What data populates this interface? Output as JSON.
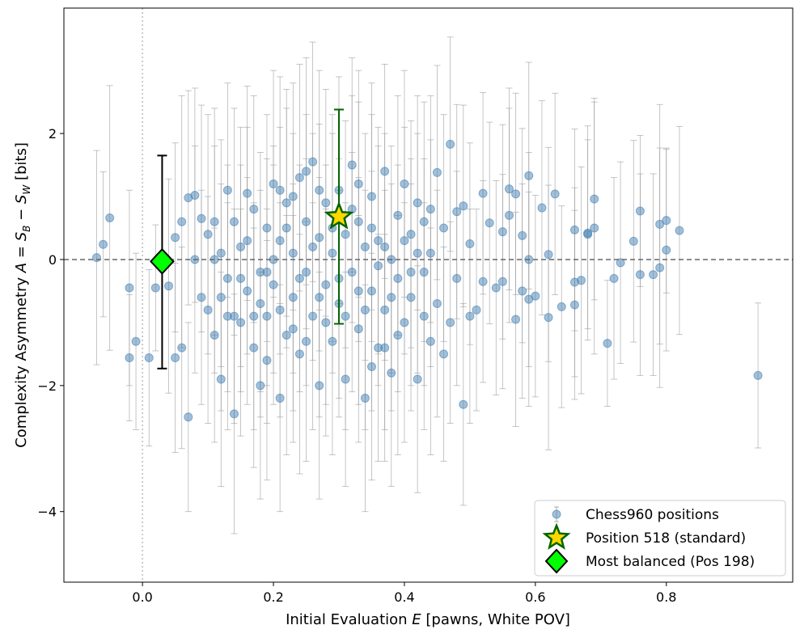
{
  "chart_data": {
    "type": "scatter",
    "xlabel": "Initial Evaluation E [pawns, White POV]",
    "xlabel_parts": {
      "pre": "Initial Evaluation ",
      "var": "E",
      "post": " [pawns, White POV]"
    },
    "ylabel": "Complexity Asymmetry A = S_B − S_W [bits]",
    "ylabel_parts": {
      "pre": "Complexity Asymmetry ",
      "var": "A",
      "eq": " = ",
      "s1": "S",
      "sub1": "B",
      "minus": " − ",
      "s2": "S",
      "sub2": "W",
      "post": " [bits]"
    },
    "xlim": [
      -0.12,
      0.993
    ],
    "ylim": [
      -5.12,
      3.99
    ],
    "xticks": [
      {
        "v": 0.0,
        "label": "0.0"
      },
      {
        "v": 0.2,
        "label": "0.2"
      },
      {
        "v": 0.4,
        "label": "0.4"
      },
      {
        "v": 0.6,
        "label": "0.6"
      },
      {
        "v": 0.8,
        "label": "0.8"
      }
    ],
    "yticks": [
      {
        "v": 2,
        "label": "2"
      },
      {
        "v": 0,
        "label": "0"
      },
      {
        "v": -2,
        "label": "−2"
      },
      {
        "v": -4,
        "label": "−4"
      }
    ],
    "grid": false,
    "reference_lines": {
      "horizontal_dashed_y": 0,
      "vertical_dotted_x": 0
    },
    "legend": {
      "placement": "bottom-right",
      "entries": [
        "Chess960 positions",
        "Position 518 (standard)",
        "Most balanced (Pos 198)"
      ]
    },
    "colors": {
      "points": "#4682b4",
      "errorbars": "#999999",
      "star_fill": "#ffd700",
      "star_edge": "#006400",
      "diamond_fill": "#00ff00",
      "diamond_edge": "#000000"
    },
    "highlight": {
      "position_518": {
        "x": 0.3,
        "y": 0.68,
        "y_low": -1.02,
        "y_high": 2.38
      },
      "most_balanced": {
        "x": 0.03,
        "y": -0.03,
        "y_low": -1.73,
        "y_high": 1.65
      }
    },
    "series_note": "points as [x, y, error half-width]",
    "points": [
      [
        -0.07,
        0.03,
        1.7
      ],
      [
        -0.06,
        0.24,
        1.15
      ],
      [
        -0.05,
        0.66,
        2.1
      ],
      [
        -0.02,
        -0.45,
        1.55
      ],
      [
        -0.02,
        -1.56,
        1.0
      ],
      [
        -0.01,
        -1.3,
        1.4
      ],
      [
        0.01,
        -1.56,
        1.4
      ],
      [
        0.02,
        -0.45,
        1.0
      ],
      [
        0.04,
        -0.42,
        1.7
      ],
      [
        0.05,
        0.35,
        1.5
      ],
      [
        0.05,
        -1.56,
        1.5
      ],
      [
        0.06,
        0.6,
        2.0
      ],
      [
        0.06,
        -1.4,
        1.6
      ],
      [
        0.07,
        -2.5,
        1.5
      ],
      [
        0.07,
        0.98,
        1.7
      ],
      [
        0.08,
        1.02,
        1.7
      ],
      [
        0.08,
        0.0,
        1.8
      ],
      [
        0.09,
        0.65,
        1.8
      ],
      [
        0.09,
        -0.6,
        1.7
      ],
      [
        0.1,
        -0.8,
        1.8
      ],
      [
        0.1,
        0.4,
        1.9
      ],
      [
        0.11,
        -1.2,
        1.7
      ],
      [
        0.11,
        0.6,
        1.8
      ],
      [
        0.12,
        -1.9,
        1.7
      ],
      [
        0.12,
        0.1,
        1.8
      ],
      [
        0.13,
        -0.3,
        1.8
      ],
      [
        0.13,
        1.1,
        1.7
      ],
      [
        0.14,
        -2.45,
        1.9
      ],
      [
        0.14,
        0.6,
        1.8
      ],
      [
        0.15,
        -1.0,
        1.8
      ],
      [
        0.15,
        0.2,
        1.9
      ],
      [
        0.16,
        -0.5,
        1.8
      ],
      [
        0.16,
        1.05,
        1.7
      ],
      [
        0.17,
        -1.4,
        1.9
      ],
      [
        0.17,
        0.8,
        1.8
      ],
      [
        0.18,
        -0.2,
        1.9
      ],
      [
        0.18,
        -2.0,
        1.8
      ],
      [
        0.19,
        0.5,
        1.8
      ],
      [
        0.19,
        -0.9,
        1.7
      ],
      [
        0.2,
        1.2,
        1.8
      ],
      [
        0.2,
        -0.4,
        1.9
      ],
      [
        0.21,
        -2.2,
        1.8
      ],
      [
        0.21,
        0.3,
        1.8
      ],
      [
        0.22,
        -1.2,
        1.9
      ],
      [
        0.22,
        0.9,
        1.8
      ],
      [
        0.23,
        -0.6,
        1.8
      ],
      [
        0.23,
        0.1,
        1.9
      ],
      [
        0.24,
        1.3,
        1.8
      ],
      [
        0.24,
        -1.5,
        1.9
      ],
      [
        0.25,
        -0.2,
        1.8
      ],
      [
        0.25,
        0.6,
        1.7
      ],
      [
        0.26,
        1.55,
        1.9
      ],
      [
        0.26,
        -0.9,
        1.8
      ],
      [
        0.27,
        -2.0,
        1.8
      ],
      [
        0.27,
        0.35,
        1.8
      ],
      [
        0.28,
        -0.4,
        1.9
      ],
      [
        0.28,
        0.9,
        1.8
      ],
      [
        0.29,
        -1.3,
        1.8
      ],
      [
        0.29,
        0.1,
        1.9
      ],
      [
        0.3,
        -0.7,
        1.8
      ],
      [
        0.3,
        1.1,
        1.8
      ],
      [
        0.31,
        -1.9,
        1.7
      ],
      [
        0.31,
        0.4,
        1.8
      ],
      [
        0.32,
        -0.2,
        1.9
      ],
      [
        0.32,
        1.5,
        1.7
      ],
      [
        0.33,
        -1.1,
        1.8
      ],
      [
        0.33,
        0.6,
        1.9
      ],
      [
        0.34,
        -2.2,
        1.8
      ],
      [
        0.34,
        0.2,
        1.8
      ],
      [
        0.35,
        -0.5,
        1.9
      ],
      [
        0.35,
        1.0,
        1.8
      ],
      [
        0.36,
        -1.4,
        1.8
      ],
      [
        0.36,
        0.3,
        1.8
      ],
      [
        0.37,
        -0.8,
        1.9
      ],
      [
        0.37,
        1.4,
        1.7
      ],
      [
        0.38,
        0.0,
        1.8
      ],
      [
        0.38,
        -1.8,
        1.8
      ],
      [
        0.39,
        0.7,
        1.9
      ],
      [
        0.39,
        -0.3,
        1.8
      ],
      [
        0.4,
        1.2,
        1.8
      ],
      [
        0.4,
        -1.0,
        1.9
      ],
      [
        0.41,
        -0.6,
        1.8
      ],
      [
        0.41,
        0.4,
        1.8
      ],
      [
        0.42,
        -1.9,
        1.8
      ],
      [
        0.42,
        0.9,
        1.7
      ],
      [
        0.43,
        -0.2,
        1.8
      ],
      [
        0.43,
        0.6,
        1.9
      ],
      [
        0.44,
        -1.3,
        1.8
      ],
      [
        0.44,
        0.1,
        1.8
      ],
      [
        0.45,
        1.38,
        1.7
      ],
      [
        0.45,
        -0.7,
        1.8
      ],
      [
        0.46,
        -1.5,
        1.7
      ],
      [
        0.46,
        0.5,
        1.8
      ],
      [
        0.47,
        1.83,
        1.7
      ],
      [
        0.47,
        -1.0,
        1.6
      ],
      [
        0.48,
        0.76,
        1.7
      ],
      [
        0.48,
        -0.3,
        1.7
      ],
      [
        0.49,
        -2.3,
        1.6
      ],
      [
        0.49,
        0.85,
        1.6
      ],
      [
        0.5,
        0.25,
        1.6
      ],
      [
        0.5,
        -0.9,
        1.7
      ],
      [
        0.51,
        -0.8,
        1.6
      ],
      [
        0.52,
        1.05,
        1.6
      ],
      [
        0.52,
        -0.35,
        1.6
      ],
      [
        0.53,
        0.58,
        1.6
      ],
      [
        0.54,
        -0.45,
        1.7
      ],
      [
        0.55,
        -0.35,
        1.7
      ],
      [
        0.55,
        0.44,
        1.7
      ],
      [
        0.56,
        0.7,
        1.7
      ],
      [
        0.56,
        1.12,
        1.6
      ],
      [
        0.57,
        -0.95,
        1.7
      ],
      [
        0.57,
        1.04,
        1.6
      ],
      [
        0.58,
        -0.5,
        1.7
      ],
      [
        0.58,
        0.38,
        1.7
      ],
      [
        0.59,
        1.33,
        1.8
      ],
      [
        0.59,
        0.0,
        1.7
      ],
      [
        0.59,
        -0.63,
        1.7
      ],
      [
        0.6,
        -0.58,
        1.6
      ],
      [
        0.61,
        0.82,
        1.7
      ],
      [
        0.62,
        0.08,
        1.7
      ],
      [
        0.62,
        -0.92,
        2.1
      ],
      [
        0.63,
        1.04,
        1.6
      ],
      [
        0.64,
        -0.75,
        1.6
      ],
      [
        0.66,
        0.47,
        1.6
      ],
      [
        0.66,
        -0.36,
        1.5
      ],
      [
        0.66,
        -0.72,
        1.5
      ],
      [
        0.67,
        -0.33,
        1.8
      ],
      [
        0.68,
        0.42,
        1.7
      ],
      [
        0.68,
        0.4,
        1.5
      ],
      [
        0.69,
        0.96,
        1.6
      ],
      [
        0.69,
        0.5,
        2.0
      ],
      [
        0.71,
        -1.33,
        1.0
      ],
      [
        0.72,
        -0.3,
        1.6
      ],
      [
        0.73,
        -0.05,
        1.6
      ],
      [
        0.75,
        0.29,
        1.6
      ],
      [
        0.76,
        0.77,
        1.2
      ],
      [
        0.76,
        -0.24,
        1.6
      ],
      [
        0.78,
        -0.24,
        1.6
      ],
      [
        0.79,
        0.56,
        1.9
      ],
      [
        0.79,
        -0.13,
        1.9
      ],
      [
        0.8,
        0.62,
        1.15
      ],
      [
        0.8,
        0.15,
        1.6
      ],
      [
        0.82,
        0.46,
        1.65
      ],
      [
        0.94,
        -1.84,
        1.15
      ],
      [
        0.12,
        -0.6,
        1.8
      ],
      [
        0.14,
        -0.9,
        1.7
      ],
      [
        0.16,
        0.3,
        1.8
      ],
      [
        0.18,
        -0.7,
        1.8
      ],
      [
        0.19,
        -1.6,
        1.9
      ],
      [
        0.2,
        0.0,
        1.8
      ],
      [
        0.21,
        -0.8,
        1.7
      ],
      [
        0.22,
        0.5,
        1.9
      ],
      [
        0.23,
        -1.1,
        1.8
      ],
      [
        0.24,
        -0.3,
        1.8
      ],
      [
        0.25,
        -1.3,
        1.9
      ],
      [
        0.26,
        0.2,
        1.8
      ],
      [
        0.27,
        -0.6,
        1.9
      ],
      [
        0.28,
        -1.0,
        1.8
      ],
      [
        0.29,
        0.5,
        1.8
      ],
      [
        0.3,
        -0.3,
        1.9
      ],
      [
        0.31,
        -0.9,
        1.8
      ],
      [
        0.32,
        0.8,
        1.8
      ],
      [
        0.33,
        -0.5,
        1.8
      ],
      [
        0.34,
        -0.8,
        1.9
      ],
      [
        0.35,
        0.5,
        1.8
      ],
      [
        0.36,
        -0.1,
        1.9
      ],
      [
        0.37,
        0.2,
        1.8
      ],
      [
        0.38,
        -0.6,
        1.8
      ],
      [
        0.39,
        -1.2,
        1.9
      ],
      [
        0.4,
        0.3,
        1.8
      ],
      [
        0.41,
        -0.2,
        1.8
      ],
      [
        0.42,
        0.1,
        1.9
      ],
      [
        0.43,
        -0.9,
        1.8
      ],
      [
        0.44,
        0.8,
        1.8
      ],
      [
        0.21,
        1.1,
        1.8
      ],
      [
        0.23,
        1.0,
        1.8
      ],
      [
        0.25,
        1.4,
        1.8
      ],
      [
        0.27,
        1.1,
        1.9
      ],
      [
        0.33,
        1.2,
        1.8
      ],
      [
        0.35,
        -1.7,
        1.8
      ],
      [
        0.37,
        -1.4,
        1.8
      ],
      [
        0.19,
        -0.2,
        1.8
      ],
      [
        0.17,
        -0.9,
        1.8
      ],
      [
        0.15,
        -0.3,
        1.8
      ],
      [
        0.13,
        -0.9,
        1.8
      ],
      [
        0.11,
        0.0,
        1.8
      ]
    ]
  }
}
